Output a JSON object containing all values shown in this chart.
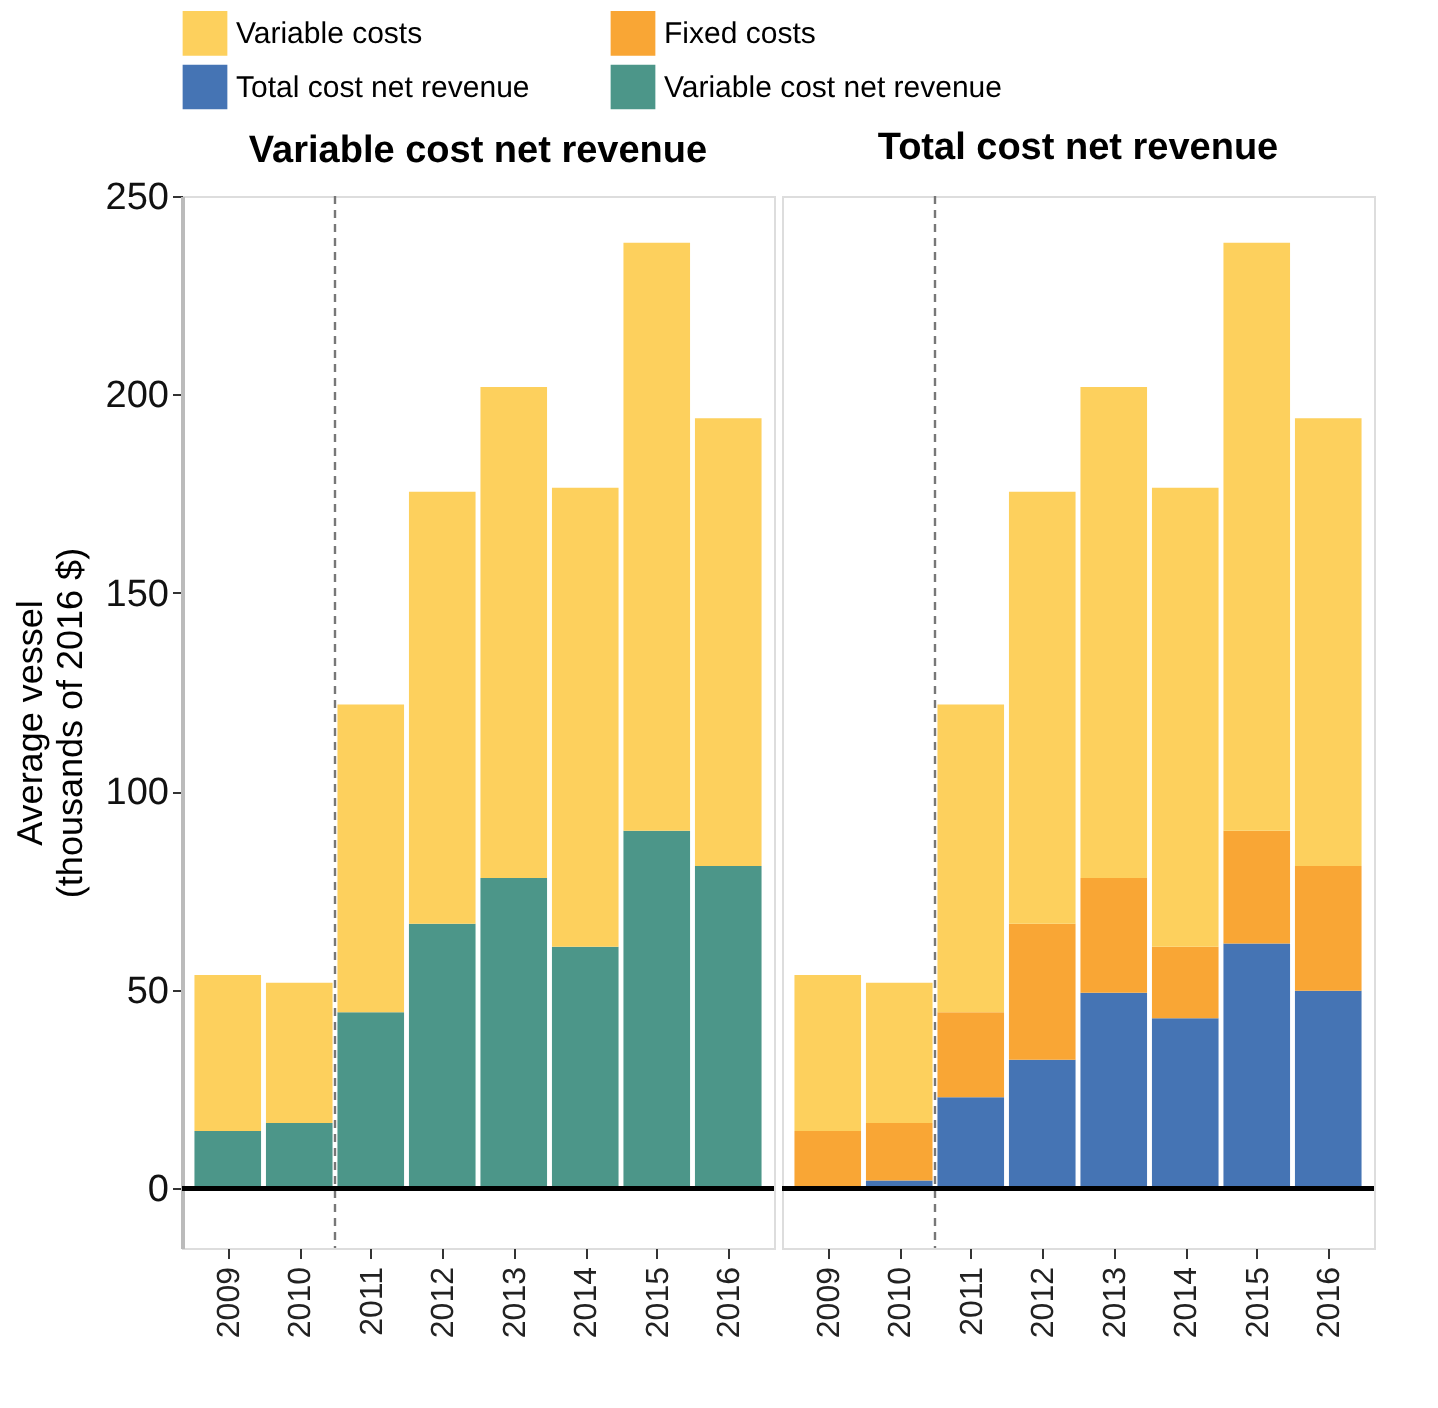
{
  "chart_data": [
    {
      "type": "bar",
      "title": "Variable cost net revenue",
      "ylabel": "Average vessel\n(thousands of 2016 $)",
      "stacked": true,
      "x": [
        2009,
        2010,
        2011,
        2012,
        2013,
        2014,
        2015,
        2016
      ],
      "xlim": [
        2008.5,
        2016.5
      ],
      "xticks": [
        2009,
        2010,
        2011,
        2012,
        2013,
        2014,
        2015,
        2016
      ],
      "ylim": [
        -15,
        250
      ],
      "yticks": [
        0,
        50,
        100,
        150,
        200,
        250
      ],
      "grid": false,
      "legend": "top",
      "series": [
        {
          "name": "Variable cost net revenue",
          "color": "#4c9689",
          "values": [
            14.5,
            16.5,
            44.4,
            66.7,
            78.2,
            60.9,
            90.1,
            81.2
          ]
        },
        {
          "name": "Variable costs",
          "color": "#fdd05d",
          "values": [
            39.3,
            35.3,
            77.5,
            108.8,
            123.7,
            115.6,
            148.1,
            112.8
          ]
        }
      ],
      "ref_lines": [
        {
          "axis": "x",
          "value": 2010.5,
          "color": "#777777",
          "line_style": "dashed"
        },
        {
          "axis": "y",
          "value": 0,
          "color": "#000000",
          "line_style": "solid"
        }
      ]
    },
    {
      "type": "bar",
      "title": "Total cost net revenue",
      "stacked": true,
      "x": [
        2009,
        2010,
        2011,
        2012,
        2013,
        2014,
        2015,
        2016
      ],
      "xlim": [
        2008.5,
        2016.5
      ],
      "xticks": [
        2009,
        2010,
        2011,
        2012,
        2013,
        2014,
        2015,
        2016
      ],
      "ylim": [
        -15,
        250
      ],
      "yticks": [
        0,
        50,
        100,
        150,
        200,
        250
      ],
      "tick_labels": "x",
      "grid": false,
      "legend": "top",
      "series": [
        {
          "name": "Total cost net revenue",
          "color": "#4574b4",
          "values": [
            0,
            2,
            23,
            32.4,
            49.3,
            42.9,
            61.7,
            49.8
          ]
        },
        {
          "name": "Fixed costs",
          "color": "#f9a635",
          "values": [
            14.5,
            14.5,
            21.4,
            34.3,
            28.9,
            18.0,
            28.4,
            31.4
          ]
        },
        {
          "name": "Variable costs",
          "color": "#fdd05d",
          "values": [
            39.3,
            35.3,
            77.5,
            108.8,
            123.7,
            115.6,
            148.1,
            112.8
          ]
        }
      ],
      "ref_lines": [
        {
          "axis": "x",
          "value": 2010.5,
          "color": "#777777",
          "line_style": "dashed"
        },
        {
          "axis": "y",
          "value": 0,
          "color": "#000000",
          "line_style": "solid"
        }
      ]
    }
  ]
}
